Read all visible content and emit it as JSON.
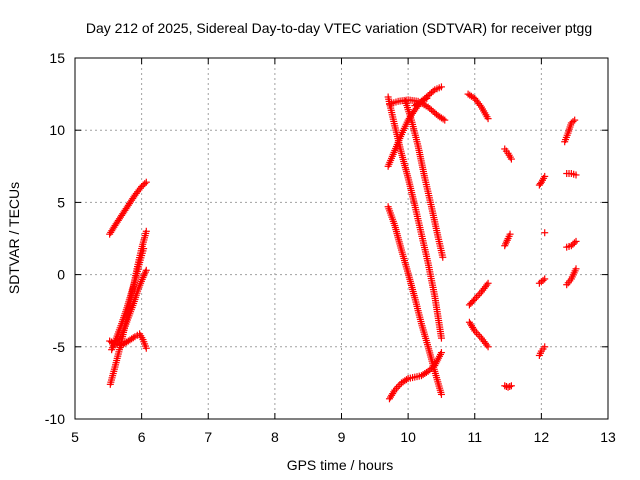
{
  "chart_data": {
    "type": "scatter",
    "title": "Day 212 of 2025, Sidereal Day-to-day VTEC variation (SDTVAR) for receiver ptgg",
    "xlabel": "GPS time / hours",
    "ylabel": "SDTVAR / TECUs",
    "xlim": [
      5,
      13
    ],
    "ylim": [
      -10,
      15
    ],
    "xticks": [
      "5",
      "6",
      "7",
      "8",
      "9",
      "10",
      "11",
      "12",
      "13"
    ],
    "yticks": [
      "-10",
      "-5",
      "0",
      "5",
      "10",
      "15"
    ],
    "grid": true,
    "marker": "+",
    "color": "#ff0000",
    "segments": [
      {
        "x": [
          5.52,
          5.6,
          5.7,
          5.8,
          5.9,
          6.0,
          6.07
        ],
        "y": [
          2.8,
          3.4,
          4.1,
          4.8,
          5.5,
          6.1,
          6.4
        ]
      },
      {
        "x": [
          5.53,
          5.6,
          5.7,
          5.8,
          5.87,
          5.93,
          6.0,
          6.07
        ],
        "y": [
          -7.6,
          -6.4,
          -4.6,
          -2.5,
          -1.0,
          0.4,
          1.8,
          3.0
        ]
      },
      {
        "x": [
          5.65,
          5.72,
          5.8,
          5.88,
          5.95,
          6.02,
          6.07
        ],
        "y": [
          -4.6,
          -4.0,
          -3.0,
          -2.0,
          -1.0,
          -0.2,
          0.3
        ]
      },
      {
        "x": [
          5.52,
          5.6,
          5.7,
          5.8,
          5.9,
          5.97,
          6.02,
          6.07
        ],
        "y": [
          -4.6,
          -4.8,
          -4.9,
          -4.6,
          -4.3,
          -4.1,
          -4.5,
          -5.1
        ]
      },
      {
        "x": [
          5.55,
          5.62,
          5.7,
          5.78,
          5.85,
          5.92,
          5.98,
          6.03
        ],
        "y": [
          -5.2,
          -4.4,
          -3.4,
          -2.3,
          -1.2,
          -0.1,
          1.0,
          1.8
        ]
      },
      {
        "x": [
          9.7,
          9.8,
          9.9,
          10.0,
          10.1,
          10.2,
          10.3,
          10.4,
          10.5
        ],
        "y": [
          12.3,
          10.3,
          8.4,
          6.7,
          4.8,
          2.8,
          0.8,
          -1.5,
          -4.4
        ]
      },
      {
        "x": [
          9.7,
          9.8,
          9.9,
          10.0,
          10.1,
          10.2,
          10.28
        ],
        "y": [
          7.5,
          8.6,
          9.7,
          10.7,
          11.4,
          12.0,
          12.2
        ]
      },
      {
        "x": [
          9.72,
          9.85,
          10.0,
          10.15,
          10.3,
          10.45,
          10.55
        ],
        "y": [
          11.8,
          12.0,
          12.1,
          12.0,
          11.6,
          11.0,
          10.7
        ]
      },
      {
        "x": [
          10.1,
          10.2,
          10.3,
          10.4,
          10.5
        ],
        "y": [
          11.7,
          12.0,
          12.4,
          12.8,
          13.0
        ]
      },
      {
        "x": [
          9.96,
          10.05,
          10.15,
          10.25,
          10.35,
          10.45,
          10.52
        ],
        "y": [
          12.0,
          10.7,
          8.9,
          6.7,
          4.7,
          2.6,
          1.2
        ]
      },
      {
        "x": [
          9.7,
          9.8,
          9.9,
          10.0,
          10.1,
          10.2,
          10.3,
          10.4,
          10.5
        ],
        "y": [
          4.7,
          3.4,
          1.7,
          0.1,
          -1.6,
          -3.4,
          -5.0,
          -6.7,
          -8.3
        ]
      },
      {
        "x": [
          9.72,
          9.8,
          9.9,
          10.0,
          10.1,
          10.2,
          10.3,
          10.4,
          10.5
        ],
        "y": [
          -8.6,
          -8.0,
          -7.5,
          -7.2,
          -7.1,
          -7.0,
          -6.7,
          -6.3,
          -5.4
        ]
      },
      {
        "x": [
          10.9,
          11.0,
          11.1,
          11.2
        ],
        "y": [
          12.5,
          12.2,
          11.6,
          10.8
        ]
      },
      {
        "x": [
          10.92,
          11.0,
          11.1,
          11.2
        ],
        "y": [
          -2.1,
          -1.7,
          -1.2,
          -0.6
        ]
      },
      {
        "x": [
          10.92,
          11.0,
          11.1,
          11.2
        ],
        "y": [
          -3.3,
          -3.9,
          -4.4,
          -5.0
        ]
      },
      {
        "x": [
          11.45,
          11.5,
          11.55
        ],
        "y": [
          8.7,
          8.4,
          8.0
        ]
      },
      {
        "x": [
          11.45,
          11.5,
          11.53
        ],
        "y": [
          2.0,
          2.5,
          2.8
        ]
      },
      {
        "x": [
          11.45,
          11.5,
          11.55
        ],
        "y": [
          -7.7,
          -7.8,
          -7.7
        ]
      },
      {
        "x": [
          11.97,
          12.0,
          12.05
        ],
        "y": [
          6.2,
          6.4,
          6.8
        ]
      },
      {
        "x": [
          12.05
        ],
        "y": [
          2.9
        ]
      },
      {
        "x": [
          11.97,
          12.0,
          12.05
        ],
        "y": [
          -0.6,
          -0.5,
          -0.3
        ]
      },
      {
        "x": [
          11.97,
          12.0,
          12.05
        ],
        "y": [
          -5.6,
          -5.3,
          -5.0
        ]
      },
      {
        "x": [
          12.35,
          12.4,
          12.45,
          12.5
        ],
        "y": [
          9.2,
          9.8,
          10.5,
          10.7
        ]
      },
      {
        "x": [
          12.38,
          12.45,
          12.52
        ],
        "y": [
          7.0,
          7.0,
          6.9
        ]
      },
      {
        "x": [
          12.38,
          12.45,
          12.52
        ],
        "y": [
          1.9,
          2.0,
          2.3
        ]
      },
      {
        "x": [
          12.38,
          12.45,
          12.52
        ],
        "y": [
          -0.7,
          -0.3,
          0.4
        ]
      }
    ]
  }
}
